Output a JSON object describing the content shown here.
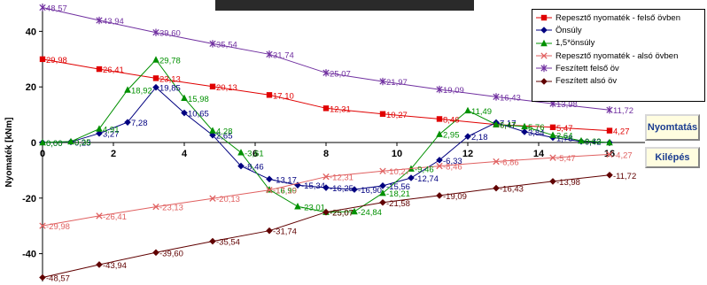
{
  "chart_data": {
    "type": "line",
    "ylabel": "Nyomaték [kNm]",
    "xlabel": "",
    "xlim": [
      0,
      17
    ],
    "ylim": [
      -50,
      50
    ],
    "x_ticks": [
      0,
      2,
      4,
      6,
      8,
      10,
      12,
      14,
      16
    ],
    "y_ticks": [
      -40,
      -20,
      0,
      20,
      40
    ],
    "legend_position": "top-right",
    "series": [
      {
        "name": "Repesztő nyomaték - felső övben",
        "color": "#e00000",
        "marker": "square",
        "x": [
          0,
          1.6,
          3.2,
          4.8,
          6.4,
          8.0,
          9.6,
          11.2,
          12.8,
          14.4,
          16.0
        ],
        "y": [
          29.98,
          26.41,
          23.13,
          20.13,
          17.1,
          12.31,
          10.27,
          8.46,
          6.47,
          5.47,
          4.27
        ],
        "labels": [
          "29,98",
          "26,41",
          "23,13",
          "20,13",
          "17,10",
          "12,31",
          "10,27",
          "8,46",
          "6,47",
          "5,47",
          "4,27"
        ]
      },
      {
        "name": "Önsúly",
        "color": "#000080",
        "marker": "diamond",
        "x": [
          0,
          0.8,
          1.6,
          2.4,
          3.2,
          4.0,
          4.8,
          5.6,
          6.4,
          7.2,
          8.0,
          8.8,
          9.6,
          10.4,
          11.2,
          12.0,
          12.8,
          13.6,
          14.4,
          15.2,
          16.0
        ],
        "y": [
          0,
          0.23,
          3.27,
          7.28,
          19.85,
          10.65,
          2.65,
          -8.46,
          -13.17,
          -15.34,
          -16.25,
          -16.9,
          -15.56,
          -12.74,
          -6.33,
          2.18,
          7.17,
          3.84,
          1.78,
          0.42,
          0
        ],
        "labels": [
          "0,00",
          "0,23",
          "3,27",
          "7,28",
          "19,85",
          "10,65",
          "2,65",
          "-8,46",
          "-13,17",
          "-15,34",
          "-16,25",
          "-16,90",
          "-15,56",
          "-12,74",
          "-6,33",
          "2,18",
          "7,17",
          "3,84",
          "1,78",
          "0,42",
          ""
        ]
      },
      {
        "name": "1,5*önsúly",
        "color": "#009000",
        "marker": "triangle",
        "x": [
          0,
          0.8,
          1.6,
          2.4,
          3.2,
          4.0,
          4.8,
          5.6,
          6.4,
          7.2,
          8.0,
          8.8,
          9.6,
          10.4,
          11.2,
          12.0,
          12.8,
          13.6,
          14.4,
          15.2,
          16.0
        ],
        "y": [
          0,
          0.35,
          4.91,
          18.92,
          29.78,
          15.98,
          4.28,
          -3.61,
          -16.99,
          -23.01,
          -25.07,
          -24.84,
          -18.21,
          -9.46,
          2.95,
          11.49,
          6.47,
          5.76,
          2.64,
          0.63,
          0
        ],
        "labels": [
          "0,00",
          "0,35",
          "4,91",
          "18,92",
          "29,78",
          "15,98",
          "4,28",
          "-3,61",
          "-16,99",
          "-23,01",
          "-25,07",
          "-24,84",
          "-18,21",
          "-9,46",
          "2,95",
          "11,49",
          "6,47",
          "5,76",
          "2,64",
          "0,63",
          ""
        ]
      },
      {
        "name": "Repesztő nyomaték - alsó övben",
        "color": "#e06060",
        "marker": "x",
        "x": [
          0,
          1.6,
          3.2,
          4.8,
          6.4,
          8.0,
          9.6,
          11.2,
          12.8,
          14.4,
          16.0
        ],
        "y": [
          -29.98,
          -26.41,
          -23.13,
          -20.13,
          -17.1,
          -12.31,
          -10.27,
          -8.46,
          -6.86,
          -5.47,
          -4.27
        ],
        "labels": [
          "-29,98",
          "-26,41",
          "-23,13",
          "-20,13",
          "-17,10",
          "-12,31",
          "-10,27",
          "-8,46",
          "-6,86",
          "-5,47",
          "-4,27"
        ]
      },
      {
        "name": "Feszített felső öv",
        "color": "#7030a0",
        "marker": "star",
        "x": [
          0,
          1.6,
          3.2,
          4.8,
          6.4,
          8.0,
          9.6,
          11.2,
          12.8,
          14.4,
          16.0
        ],
        "y": [
          48.57,
          43.94,
          39.6,
          35.54,
          31.74,
          25.07,
          21.97,
          19.09,
          16.43,
          13.98,
          11.72
        ],
        "labels": [
          "48,57",
          "43,94",
          "39,60",
          "35,54",
          "31,74",
          "25,07",
          "21,97",
          "19,09",
          "16,43",
          "13,98",
          "11,72"
        ]
      },
      {
        "name": "Feszített alsó öv",
        "color": "#600000",
        "marker": "diamond",
        "x": [
          0,
          1.6,
          3.2,
          4.8,
          6.4,
          8.0,
          9.6,
          11.2,
          12.8,
          14.4,
          16.0
        ],
        "y": [
          -48.57,
          -43.94,
          -39.6,
          -35.54,
          -31.74,
          -25.07,
          -21.58,
          -19.09,
          -16.43,
          -13.98,
          -11.72
        ],
        "labels": [
          "-48,57",
          "-43,94",
          "-39,60",
          "-35,54",
          "-31,74",
          "-25,07",
          "-21,58",
          "-19,09",
          "-16,43",
          "-13,98",
          "-11,72"
        ]
      }
    ]
  },
  "buttons": {
    "print_label": "Nyomtatás",
    "exit_label": "Kilépés"
  }
}
